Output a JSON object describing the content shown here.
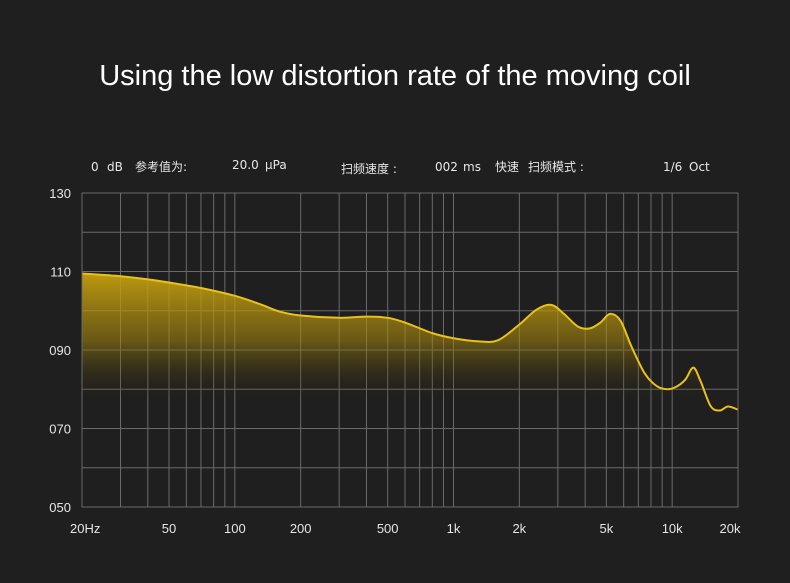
{
  "title": "Using the low distortion rate of the moving coil",
  "header_info": {
    "ref_level_value": "0",
    "ref_level_unit": "dB",
    "ref_label": "参考值为:",
    "ref_value": "20.0",
    "ref_unit": "μPa",
    "sweep_speed_label": "扫频速度 :",
    "sweep_speed_value": "002",
    "sweep_speed_unit": "ms",
    "fast_label": "快速",
    "sweep_mode_label": "扫频模式 :",
    "resolution_value": "1/6",
    "resolution_unit": "Oct"
  },
  "colors": {
    "background": "#1f1f1f",
    "grid": "#6a6a6a",
    "curve": "#e8c21a",
    "fill": "#c9a40f"
  },
  "chart_data": {
    "type": "area",
    "title": "Using the low distortion rate of the moving coil",
    "xlabel": "",
    "ylabel": "",
    "x_scale": "log",
    "xlim": [
      20,
      20000
    ],
    "ylim": [
      50,
      130
    ],
    "x_tick_labels": [
      {
        "value": 20,
        "label": "20Hz"
      },
      {
        "value": 50,
        "label": "50"
      },
      {
        "value": 100,
        "label": "100"
      },
      {
        "value": 200,
        "label": "200"
      },
      {
        "value": 500,
        "label": "500"
      },
      {
        "value": 1000,
        "label": "1k"
      },
      {
        "value": 2000,
        "label": "2k"
      },
      {
        "value": 5000,
        "label": "5k"
      },
      {
        "value": 10000,
        "label": "10k"
      },
      {
        "value": 20000,
        "label": "20k"
      }
    ],
    "y_tick_labels": [
      {
        "value": 130,
        "label": "130"
      },
      {
        "value": 110,
        "label": "110"
      },
      {
        "value": 90,
        "label": "090"
      },
      {
        "value": 70,
        "label": "070"
      },
      {
        "value": 50,
        "label": "050"
      }
    ],
    "grid": true,
    "series": [
      {
        "x": [
          20,
          30,
          40,
          50,
          70,
          100,
          130,
          160,
          200,
          300,
          400,
          500,
          600,
          800,
          1000,
          1300,
          1600,
          2000,
          2400,
          2800,
          3200,
          3700,
          4200,
          4700,
          5200,
          5800,
          6500,
          7500,
          8500,
          9500,
          10500,
          11500,
          12500,
          13500,
          15000,
          16500,
          18000,
          20000
        ],
        "y": [
          109.5,
          108.8,
          108,
          107.2,
          105.8,
          103.8,
          101.7,
          99.8,
          98.8,
          98.2,
          98.5,
          98.2,
          97,
          94.3,
          93,
          92.2,
          92.5,
          96.5,
          100.3,
          101.5,
          99.2,
          96,
          95.5,
          97,
          99.2,
          97.5,
          91,
          84,
          80.8,
          80,
          80.7,
          82.5,
          85.5,
          82,
          75.7,
          74.6,
          75.6,
          74.8
        ]
      }
    ]
  }
}
